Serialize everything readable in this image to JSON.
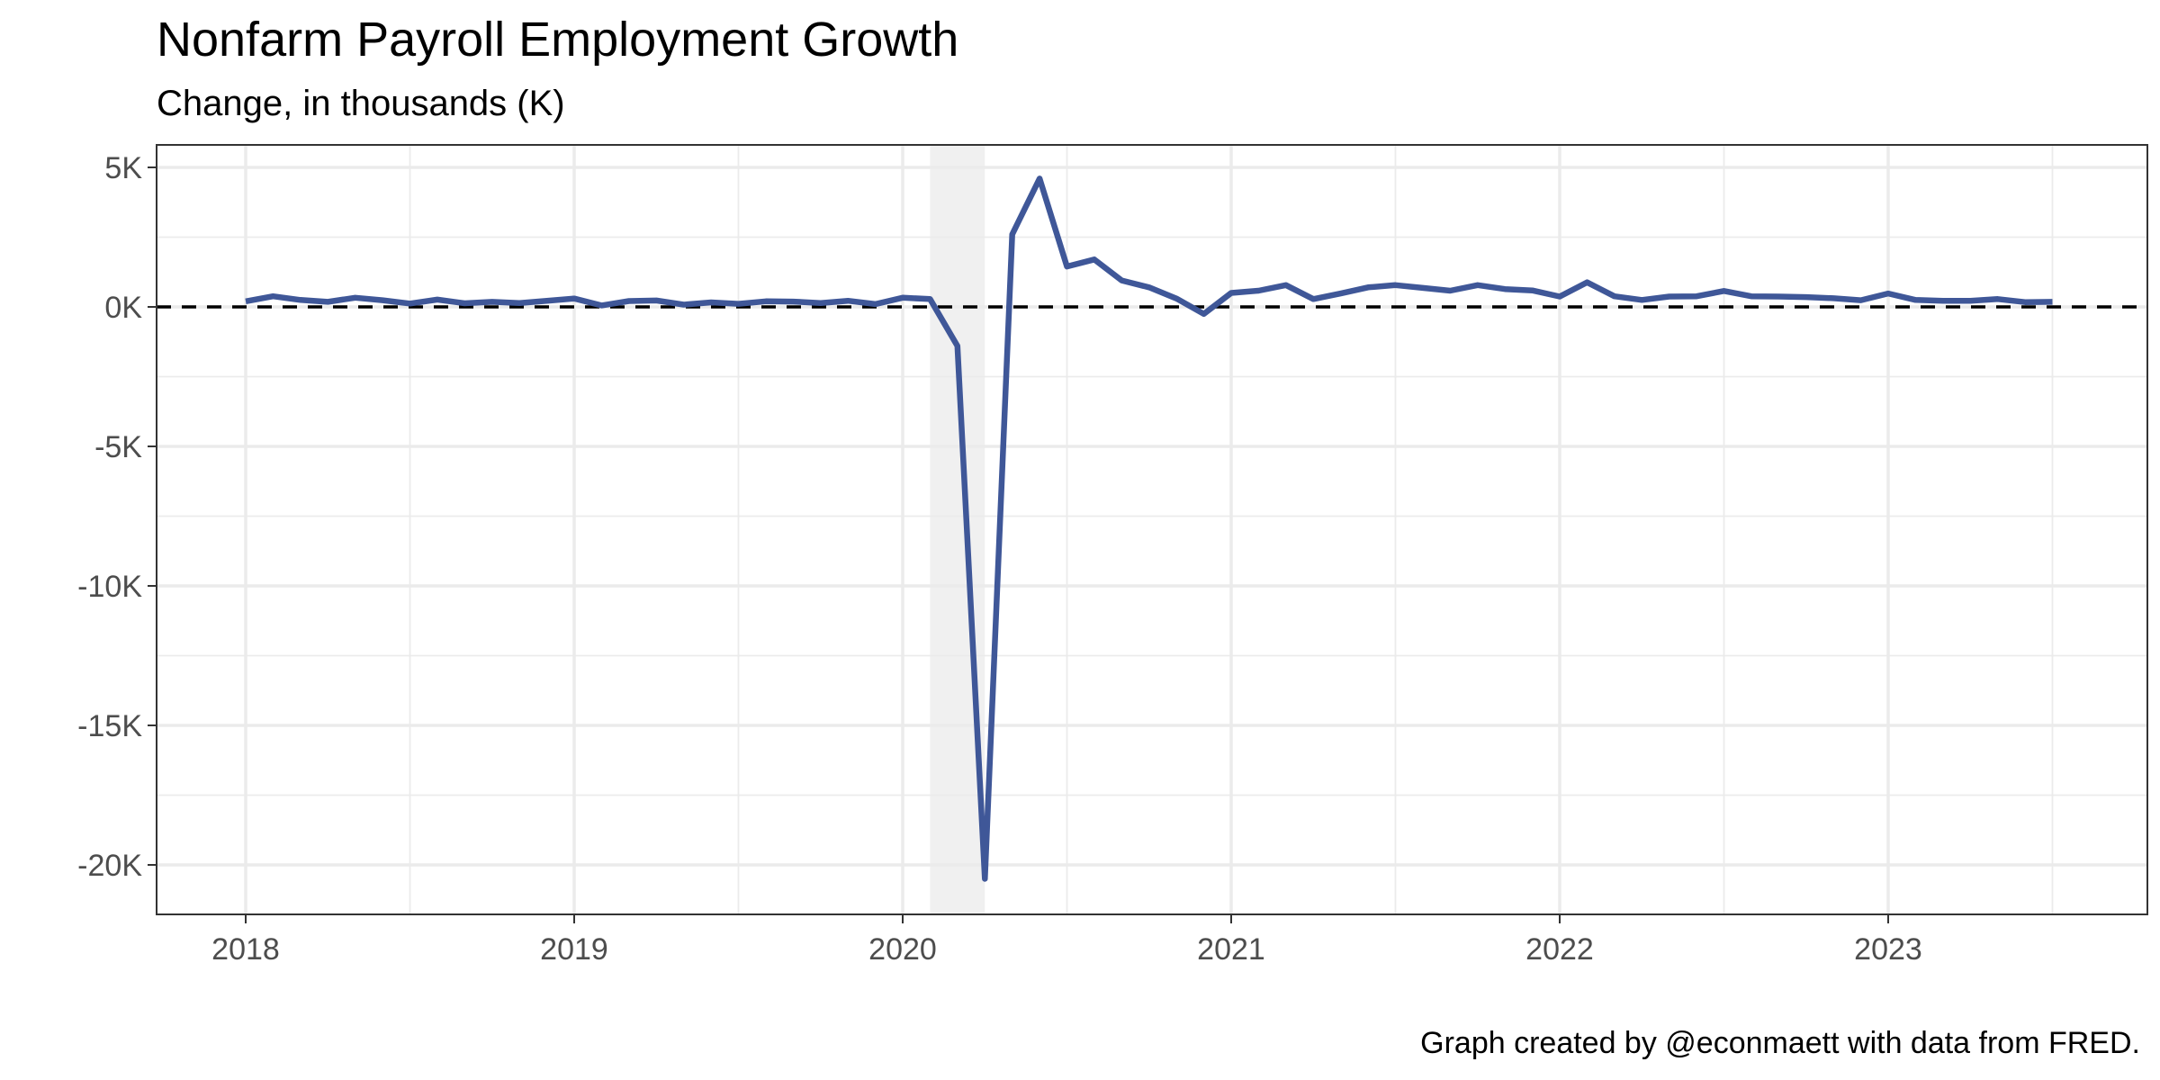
{
  "chart_data": {
    "type": "line",
    "title": "Nonfarm Payroll Employment Growth",
    "subtitle": "Change, in thousands (K)",
    "caption": "Graph created by @econmaett with data from FRED.",
    "xlabel": "",
    "ylabel": "",
    "ylim": [
      -20600,
      5800
    ],
    "y_ticks": [
      5000,
      0,
      -5000,
      -10000,
      -15000,
      -20000
    ],
    "y_tick_labels": [
      "5K",
      "0K",
      "-5K",
      "-10K",
      "-15K",
      "-20K"
    ],
    "x_ticks": [
      "2018-01-01",
      "2019-01-01",
      "2020-01-01",
      "2021-01-01",
      "2022-01-01",
      "2023-01-01"
    ],
    "x_tick_labels": [
      "2018",
      "2019",
      "2020",
      "2021",
      "2022",
      "2023"
    ],
    "reference_line": {
      "y": 0,
      "style": "dashed",
      "color": "#000000"
    },
    "recession_shading": {
      "start": "2020-02-01",
      "end": "2020-04-01",
      "color": "#f0f0f0"
    },
    "line_color": "#3b5496",
    "grid": true,
    "series": [
      {
        "x": [
          "2018-01",
          "2018-02",
          "2018-03",
          "2018-04",
          "2018-05",
          "2018-06",
          "2018-07",
          "2018-08",
          "2018-09",
          "2018-10",
          "2018-11",
          "2018-12",
          "2019-01",
          "2019-02",
          "2019-03",
          "2019-04",
          "2019-05",
          "2019-06",
          "2019-07",
          "2019-08",
          "2019-09",
          "2019-10",
          "2019-11",
          "2019-12",
          "2020-01",
          "2020-02",
          "2020-03",
          "2020-04",
          "2020-05",
          "2020-06",
          "2020-07",
          "2020-08",
          "2020-09",
          "2020-10",
          "2020-11",
          "2020-12",
          "2021-01",
          "2021-02",
          "2021-03",
          "2021-04",
          "2021-05",
          "2021-06",
          "2021-07",
          "2021-08",
          "2021-09",
          "2021-10",
          "2021-11",
          "2021-12",
          "2022-01",
          "2022-02",
          "2022-03",
          "2022-04",
          "2022-05",
          "2022-06",
          "2022-07",
          "2022-08",
          "2022-09",
          "2022-10",
          "2022-11",
          "2022-12",
          "2023-01",
          "2023-02",
          "2023-03",
          "2023-04",
          "2023-05",
          "2023-06",
          "2023-07"
        ],
        "values": [
          200,
          380,
          250,
          180,
          330,
          240,
          120,
          260,
          130,
          180,
          140,
          220,
          300,
          50,
          210,
          230,
          80,
          160,
          110,
          200,
          190,
          140,
          220,
          100,
          330,
          280,
          -1400,
          -20500,
          2600,
          4600,
          1450,
          1700,
          950,
          700,
          300,
          -250,
          500,
          580,
          780,
          280,
          480,
          700,
          780,
          680,
          580,
          780,
          640,
          590,
          370,
          880,
          380,
          250,
          370,
          380,
          570,
          380,
          370,
          350,
          310,
          240,
          480,
          250,
          220,
          220,
          280,
          170,
          180
        ]
      }
    ]
  }
}
